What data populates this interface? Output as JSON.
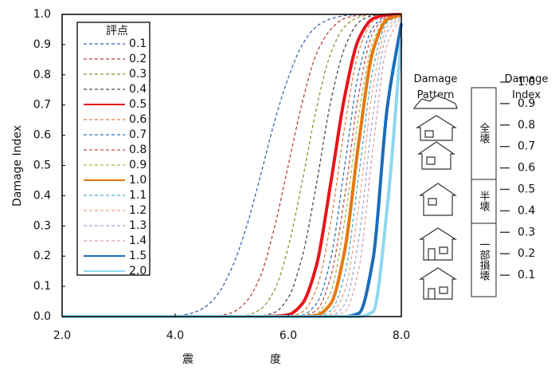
{
  "chart_data": {
    "type": "line",
    "xlabel": "震度",
    "ylabel": "Damage  Index",
    "x": [
      2,
      2.25,
      2.5,
      2.75,
      3,
      3.25,
      3.5,
      3.75,
      4,
      4.25,
      4.5,
      4.75,
      5,
      5.25,
      5.5,
      5.75,
      6,
      6.25,
      6.5,
      6.75,
      7,
      7.25,
      7.5,
      7.75,
      8
    ],
    "xlim": [
      2,
      8
    ],
    "ylim": [
      0,
      1
    ],
    "xticks": [
      {
        "value": 2,
        "label": "2.0"
      },
      {
        "value": 4,
        "label": "4.0"
      },
      {
        "value": 6,
        "label": "6.0"
      },
      {
        "value": 8,
        "label": "8.0"
      }
    ],
    "yticks": [
      {
        "value": 0,
        "label": "0.0"
      },
      {
        "value": 0.1,
        "label": "0.1"
      },
      {
        "value": 0.2,
        "label": "0.2"
      },
      {
        "value": 0.3,
        "label": "0.3"
      },
      {
        "value": 0.4,
        "label": "0.4"
      },
      {
        "value": 0.5,
        "label": "0.5"
      },
      {
        "value": 0.6,
        "label": "0.6"
      },
      {
        "value": 0.7,
        "label": "0.7"
      },
      {
        "value": 0.8,
        "label": "0.8"
      },
      {
        "value": 0.9,
        "label": "0.9"
      },
      {
        "value": 1,
        "label": "1.0"
      }
    ],
    "grid": false,
    "legend": "top-left",
    "legend_title": "評点",
    "series": [
      {
        "name": "0.1",
        "color": "#3a62b0",
        "style": "dashed",
        "values": [
          0,
          0,
          0,
          0,
          0,
          0,
          0,
          0,
          0.002,
          0.009,
          0.028,
          0.073,
          0.16,
          0.29,
          0.46,
          0.64,
          0.79,
          0.9,
          0.96,
          0.985,
          0.996,
          1,
          1,
          1,
          1
        ]
      },
      {
        "name": "0.2",
        "color": "#b8403c",
        "style": "dashed",
        "values": [
          0,
          0,
          0,
          0,
          0,
          0,
          0,
          0,
          0,
          0,
          0,
          0.003,
          0.013,
          0.048,
          0.13,
          0.29,
          0.5,
          0.71,
          0.87,
          0.95,
          0.987,
          0.997,
          1,
          1,
          1
        ]
      },
      {
        "name": "0.3",
        "color": "#8f8f32",
        "style": "dashed",
        "values": [
          0,
          0,
          0,
          0,
          0,
          0,
          0,
          0,
          0,
          0,
          0,
          0,
          0,
          0.004,
          0.023,
          0.085,
          0.23,
          0.45,
          0.69,
          0.87,
          0.96,
          0.991,
          0.999,
          1,
          1
        ]
      },
      {
        "name": "0.4",
        "color": "#4a4a4a",
        "style": "dashed",
        "values": [
          0,
          0,
          0,
          0,
          0,
          0,
          0,
          0,
          0,
          0,
          0,
          0,
          0,
          0,
          0.002,
          0.013,
          0.063,
          0.2,
          0.44,
          0.71,
          0.89,
          0.974,
          0.996,
          1,
          1
        ]
      },
      {
        "name": "0.5",
        "color": "#e8141b",
        "style": "solid",
        "values": [
          0,
          0,
          0,
          0,
          0,
          0,
          0,
          0,
          0,
          0,
          0,
          0,
          0,
          0,
          0,
          0.001,
          0.006,
          0.043,
          0.17,
          0.44,
          0.73,
          0.92,
          0.986,
          0.998,
          1
        ]
      },
      {
        "name": "0.6",
        "color": "#e07b3a",
        "style": "dashed",
        "values": [
          0,
          0,
          0,
          0,
          0,
          0,
          0,
          0,
          0,
          0,
          0,
          0,
          0,
          0,
          0,
          0,
          0.001,
          0.015,
          0.092,
          0.31,
          0.63,
          0.88,
          0.977,
          0.998,
          1
        ]
      },
      {
        "name": "0.7",
        "color": "#2e74b8",
        "style": "dashed",
        "values": [
          0,
          0,
          0,
          0,
          0,
          0,
          0,
          0,
          0,
          0,
          0,
          0,
          0,
          0,
          0,
          0,
          0,
          0.005,
          0.043,
          0.19,
          0.5,
          0.81,
          0.957,
          0.995,
          1
        ]
      },
      {
        "name": "0.8",
        "color": "#c8504a",
        "style": "dashed",
        "values": [
          0,
          0,
          0,
          0,
          0,
          0,
          0,
          0,
          0,
          0,
          0,
          0,
          0,
          0,
          0,
          0,
          0,
          0.002,
          0.021,
          0.13,
          0.4,
          0.74,
          0.94,
          0.992,
          1
        ]
      },
      {
        "name": "0.9",
        "color": "#a5b845",
        "style": "dashed",
        "values": [
          0,
          0,
          0,
          0,
          0,
          0,
          0,
          0,
          0,
          0,
          0,
          0,
          0,
          0,
          0,
          0,
          0,
          0.001,
          0.01,
          0.08,
          0.32,
          0.67,
          0.91,
          0.989,
          1
        ]
      },
      {
        "name": "1.0",
        "color": "#e6780e",
        "style": "solid",
        "values": [
          0,
          0,
          0,
          0,
          0,
          0,
          0,
          0,
          0,
          0,
          0,
          0,
          0,
          0,
          0,
          0,
          0,
          0,
          0.004,
          0.042,
          0.22,
          0.58,
          0.88,
          0.983,
          0.999
        ]
      },
      {
        "name": "1.1",
        "color": "#4aaec8",
        "style": "dashed",
        "values": [
          0,
          0,
          0,
          0,
          0,
          0,
          0,
          0,
          0,
          0,
          0,
          0,
          0,
          0,
          0,
          0,
          0,
          0,
          0.001,
          0.019,
          0.14,
          0.47,
          0.82,
          0.973,
          0.998
        ]
      },
      {
        "name": "1.2",
        "color": "#f2a47c",
        "style": "dashed",
        "values": [
          0,
          0,
          0,
          0,
          0,
          0,
          0,
          0,
          0,
          0,
          0,
          0,
          0,
          0,
          0,
          0,
          0,
          0,
          0,
          0.008,
          0.085,
          0.37,
          0.76,
          0.96,
          0.997
        ]
      },
      {
        "name": "1.3",
        "color": "#98a8d8",
        "style": "dashed",
        "values": [
          0,
          0,
          0,
          0,
          0,
          0,
          0,
          0,
          0,
          0,
          0,
          0,
          0,
          0,
          0,
          0,
          0,
          0,
          0,
          0.002,
          0.041,
          0.26,
          0.67,
          0.94,
          0.995
        ]
      },
      {
        "name": "1.4",
        "color": "#d9a2a2",
        "style": "dashed",
        "values": [
          0,
          0,
          0,
          0,
          0,
          0,
          0,
          0,
          0,
          0,
          0,
          0,
          0,
          0,
          0,
          0,
          0,
          0,
          0,
          0.001,
          0.016,
          0.16,
          0.56,
          0.9,
          0.992
        ]
      },
      {
        "name": "1.5",
        "color": "#1b6cbc",
        "style": "solid",
        "values": [
          0,
          0,
          0,
          0,
          0,
          0,
          0,
          0,
          0,
          0,
          0,
          0,
          0,
          0,
          0,
          0,
          0,
          0,
          0,
          0,
          0,
          0.011,
          0.19,
          0.69,
          0.97
        ]
      },
      {
        "name": "2.0",
        "color": "#8dd8f2",
        "style": "solid",
        "values": [
          0,
          0,
          0,
          0,
          0,
          0,
          0,
          0,
          0,
          0,
          0,
          0,
          0,
          0,
          0,
          0,
          0,
          0,
          0,
          0,
          0,
          0,
          0.016,
          0.36,
          0.92
        ]
      }
    ]
  },
  "side_panel": {
    "pattern_title": "Damage Pattern",
    "index_title": "Damage Index",
    "index_ticks": [
      {
        "value": 1,
        "label": "1.0"
      },
      {
        "value": 0.9,
        "label": "0.9"
      },
      {
        "value": 0.8,
        "label": "0.8"
      },
      {
        "value": 0.7,
        "label": "0.7"
      },
      {
        "value": 0.6,
        "label": "0.6"
      },
      {
        "value": 0.5,
        "label": "0.5"
      },
      {
        "value": 0.4,
        "label": "0.4"
      },
      {
        "value": 0.3,
        "label": "0.3"
      },
      {
        "value": 0.2,
        "label": "0.2"
      },
      {
        "value": 0.1,
        "label": "0.1"
      }
    ],
    "classes": [
      "全壊",
      "半壊",
      "一部損壊"
    ]
  }
}
